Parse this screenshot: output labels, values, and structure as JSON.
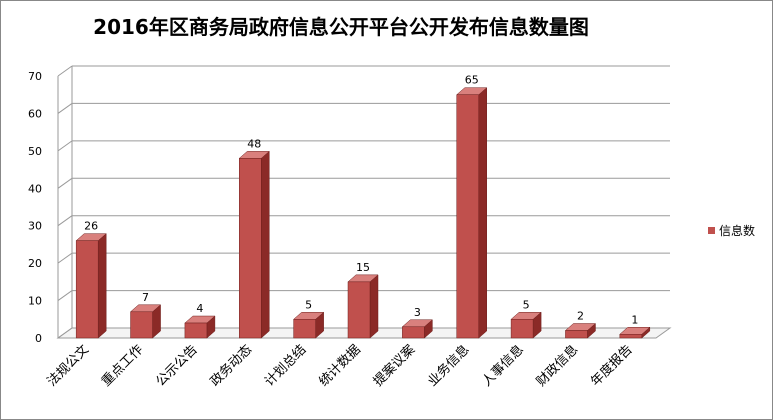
{
  "chart_data": {
    "type": "bar",
    "title": "2016年区商务局政府信息公开平台公开发布信息数量图",
    "categories": [
      "法规公文",
      "重点工作",
      "公示公告",
      "政务动态",
      "计划总结",
      "统计数据",
      "提案议案",
      "业务信息",
      "人事信息",
      "财政信息",
      "年度报告"
    ],
    "series": [
      {
        "name": "信息数",
        "values": [
          26,
          7,
          4,
          48,
          5,
          15,
          3,
          65,
          5,
          2,
          1
        ]
      }
    ],
    "ylim": [
      0,
      70
    ],
    "yticks": [
      0,
      10,
      20,
      30,
      40,
      50,
      60,
      70
    ],
    "grid": true,
    "legend": "right",
    "colors": {
      "bar_front": "#c0504d",
      "bar_side": "#8b2a27",
      "bar_top": "#d9807d",
      "grid": "#9a9a9a"
    }
  }
}
